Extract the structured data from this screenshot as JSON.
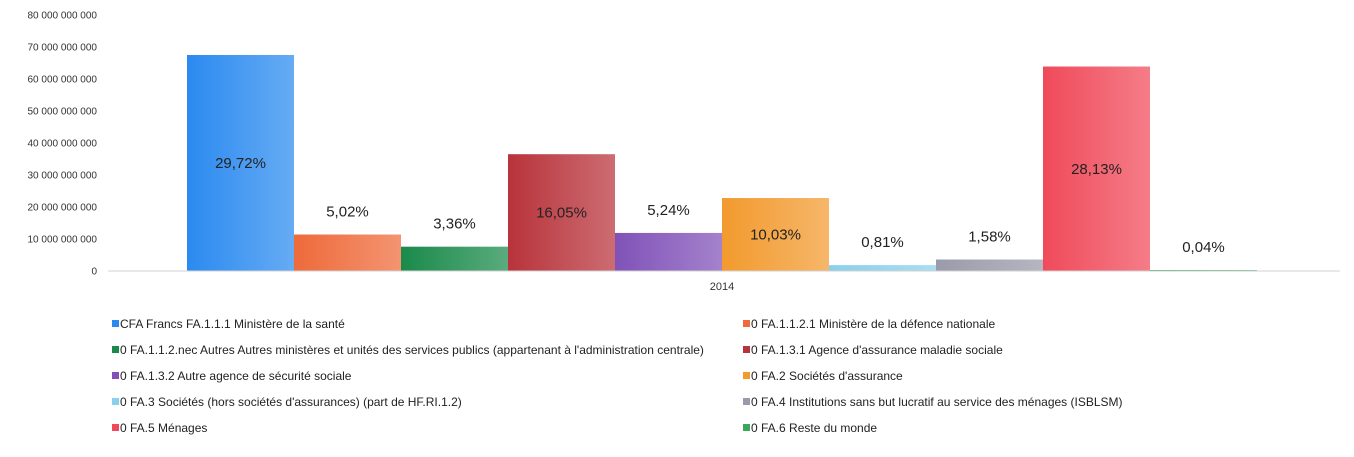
{
  "chart_data": {
    "type": "bar",
    "categories": [
      "2014"
    ],
    "ylim": [
      0,
      80000000000
    ],
    "yticks": [
      {
        "value": 0,
        "label": "0"
      },
      {
        "value": 10000000000,
        "label": "10 000 000 000"
      },
      {
        "value": 20000000000,
        "label": "20 000 000 000"
      },
      {
        "value": 30000000000,
        "label": "30 000 000 000"
      },
      {
        "value": 40000000000,
        "label": "40 000 000 000"
      },
      {
        "value": 50000000000,
        "label": "50 000 000 000"
      },
      {
        "value": 60000000000,
        "label": "60 000 000 000"
      },
      {
        "value": 70000000000,
        "label": "70 000 000 000"
      },
      {
        "value": 80000000000,
        "label": "80 000 000 000"
      }
    ],
    "legend_position": "bottom",
    "grid": false,
    "series": [
      {
        "name": "CFA Francs FA.1.1.1 Ministère de la santé",
        "values": [
          67500000000
        ],
        "label": "29,72%",
        "color": "#2b8af0"
      },
      {
        "name": "0 FA.1.1.2.1 Ministère de la défence nationale",
        "values": [
          11400000000
        ],
        "label": "5,02%",
        "color": "#ee6a3a"
      },
      {
        "name": "0 FA.1.1.2.nec Autres Autres ministères et unités des services publics (appartenant à l'administration centrale)",
        "values": [
          7600000000
        ],
        "label": "3,36%",
        "color": "#1a8a4a"
      },
      {
        "name": "0 FA.1.3.1 Agence d'assurance maladie sociale",
        "values": [
          36500000000
        ],
        "label": "16,05%",
        "color": "#b8333b"
      },
      {
        "name": "0 FA.1.3.2 Autre agence de sécurité sociale",
        "values": [
          11900000000
        ],
        "label": "5,24%",
        "color": "#8052b8"
      },
      {
        "name": "0 FA.2 Sociétés d'assurance",
        "values": [
          22800000000
        ],
        "label": "10,03%",
        "color": "#f29a2e"
      },
      {
        "name": "0 FA.3 Sociétés (hors sociétés d'assurances) (part de HF.RI.1.2)",
        "values": [
          1840000000
        ],
        "label": "0,81%",
        "color": "#8ad0ea"
      },
      {
        "name": "0 FA.4 Institutions sans but lucratif au service des ménages (ISBLSM)",
        "values": [
          3590000000
        ],
        "label": "1,58%",
        "color": "#9a9aaa"
      },
      {
        "name": "0 FA.5 Ménages",
        "values": [
          63900000000
        ],
        "label": "28,13%",
        "color": "#f04a5a"
      },
      {
        "name": "0 FA.6 Reste du monde",
        "values": [
          90000000
        ],
        "label": "0,04%",
        "color": "#3aa85a"
      }
    ]
  }
}
